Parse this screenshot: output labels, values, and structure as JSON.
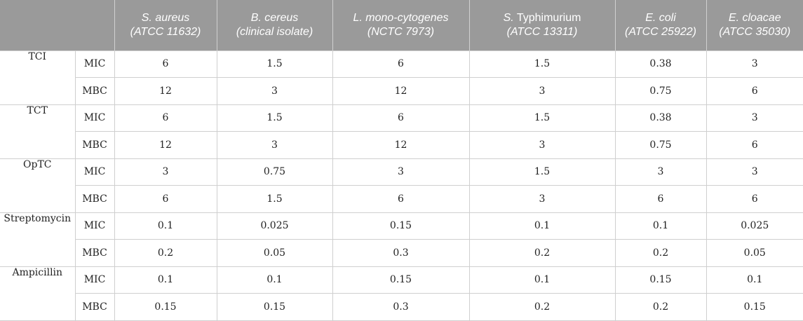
{
  "header": {
    "corner": "",
    "columns": [
      {
        "species": "S. aureus",
        "strain": "(ATCC 11632)"
      },
      {
        "species": "B. cereus",
        "strain": "(clinical isolate)"
      },
      {
        "species": "L. mono-cytogenes",
        "strain": "(NCTC 7973)"
      },
      {
        "species": "S. Typhimurium",
        "strain": "(ATCC 13311)",
        "species_italic_part": "S.",
        "species_plain_part": " Typhimurium"
      },
      {
        "species": "E. coli",
        "strain": "(ATCC 25922)"
      },
      {
        "species": "E. cloacae",
        "strain": "(ATCC 35030)"
      }
    ]
  },
  "rows": [
    {
      "compound": "TCI",
      "mic": {
        "label": "MIC",
        "values": [
          "6",
          "1.5",
          "6",
          "1.5",
          "0.38",
          "3"
        ]
      },
      "mbc": {
        "label": "MBC",
        "values": [
          "12",
          "3",
          "12",
          "3",
          "0.75",
          "6"
        ]
      }
    },
    {
      "compound": "TCT",
      "mic": {
        "label": "MIC",
        "values": [
          "6",
          "1.5",
          "6",
          "1.5",
          "0.38",
          "3"
        ]
      },
      "mbc": {
        "label": "MBC",
        "values": [
          "12",
          "3",
          "12",
          "3",
          "0.75",
          "6"
        ]
      }
    },
    {
      "compound": "OpTC",
      "mic": {
        "label": "MIC",
        "values": [
          "3",
          "0.75",
          "3",
          "1.5",
          "3",
          "3"
        ]
      },
      "mbc": {
        "label": "MBC",
        "values": [
          "6",
          "1.5",
          "6",
          "3",
          "6",
          "6"
        ]
      }
    },
    {
      "compound": "Streptomycin",
      "mic": {
        "label": "MIC",
        "values": [
          "0.1",
          "0.025",
          "0.15",
          "0.1",
          "0.1",
          "0.025"
        ]
      },
      "mbc": {
        "label": "MBC",
        "values": [
          "0.2",
          "0.05",
          "0.3",
          "0.2",
          "0.2",
          "0.05"
        ]
      }
    },
    {
      "compound": "Ampicillin",
      "mic": {
        "label": "MIC",
        "values": [
          "0.1",
          "0.1",
          "0.15",
          "0.1",
          "0.15",
          "0.1"
        ]
      },
      "mbc": {
        "label": "MBC",
        "values": [
          "0.15",
          "0.15",
          "0.3",
          "0.2",
          "0.2",
          "0.15"
        ]
      }
    }
  ]
}
